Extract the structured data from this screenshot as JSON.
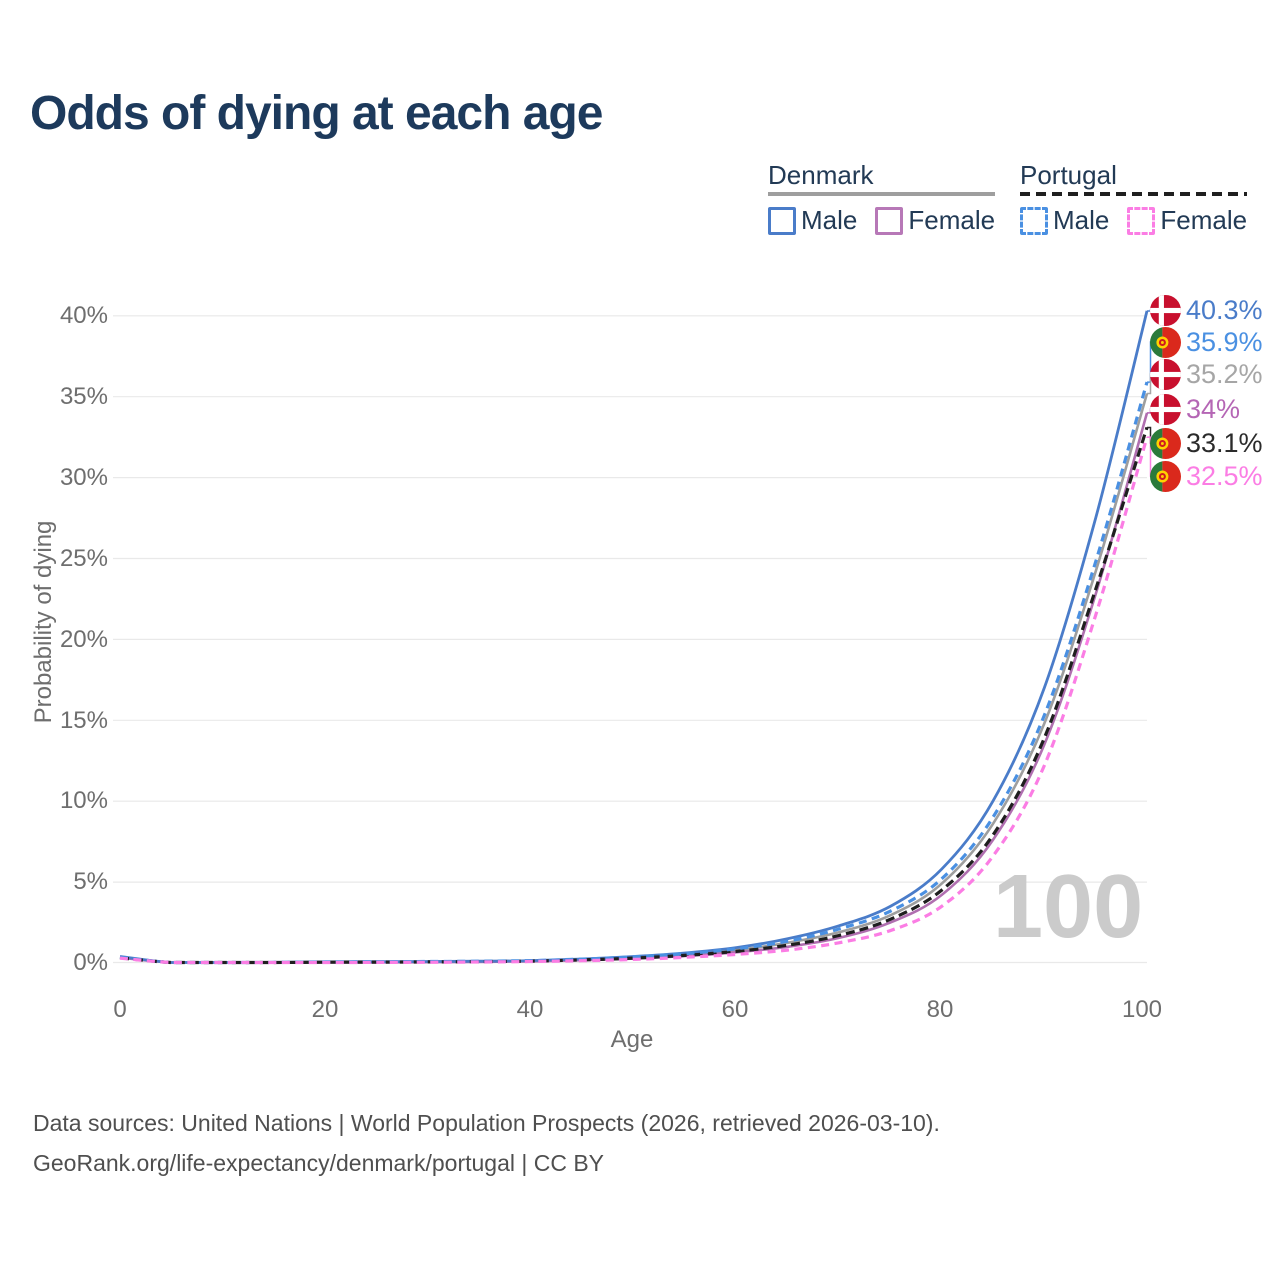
{
  "page": {
    "title": "Odds of dying at each age",
    "watermark": "100",
    "footer_line1": "Data sources: United Nations | World Population Prospects (2026, retrieved 2026-03-10).",
    "footer_line2": "GeoRank.org/life-expectancy/denmark/portugal | CC BY"
  },
  "legend": {
    "groups": [
      {
        "label": "Denmark",
        "line_style": "solid",
        "underline_color": "#9e9e9e",
        "items": [
          {
            "label": "Male",
            "color": "#4a7cc9"
          },
          {
            "label": "Female",
            "color": "#b778b7"
          }
        ]
      },
      {
        "label": "Portugal",
        "line_style": "dashed",
        "underline_color": "#1f1f1f",
        "items": [
          {
            "label": "Male",
            "color": "#4a90e2"
          },
          {
            "label": "Female",
            "color": "#fb7de4"
          }
        ]
      }
    ]
  },
  "chart_data": {
    "type": "line",
    "title": "Odds of dying at each age",
    "xlabel": "Age",
    "ylabel": "Probability of dying",
    "xlim": [
      0,
      100
    ],
    "ylim_percent": [
      0,
      40.3
    ],
    "grid": "horizontal",
    "legend_position": "top-right",
    "x_ticks": [
      "0",
      "20",
      "40",
      "60",
      "80",
      "100"
    ],
    "x_tick_values": [
      0,
      20,
      40,
      60,
      80,
      100
    ],
    "y_ticks": [
      "40%",
      "35%",
      "30%",
      "25%",
      "20%",
      "15%",
      "10%",
      "5%",
      "0%"
    ],
    "y_tick_values": [
      40,
      35,
      30,
      25,
      20,
      15,
      10,
      5,
      0
    ],
    "x": [
      0,
      5,
      10,
      15,
      20,
      25,
      30,
      35,
      40,
      45,
      50,
      55,
      60,
      65,
      70,
      75,
      80,
      85,
      90,
      95,
      100
    ],
    "series": [
      {
        "id": "denmark-both",
        "name": "Denmark (both sexes)",
        "country": "Denmark",
        "sex": "Both",
        "color": "#9e9e9e",
        "style": "solid",
        "width": 2.6,
        "end_label": "35.2%",
        "values": [
          0.37,
          0.02,
          0.02,
          0.03,
          0.05,
          0.06,
          0.07,
          0.09,
          0.13,
          0.21,
          0.33,
          0.52,
          0.8,
          1.25,
          1.9,
          2.95,
          4.9,
          8.6,
          14.8,
          24.2,
          35.2
        ]
      },
      {
        "id": "denmark-female",
        "name": "Denmark Female",
        "country": "Denmark",
        "sex": "Female",
        "color": "#b06fb0",
        "style": "solid",
        "width": 2.6,
        "end_label": "34%",
        "values": [
          0.33,
          0.015,
          0.015,
          0.025,
          0.035,
          0.04,
          0.05,
          0.07,
          0.1,
          0.17,
          0.27,
          0.43,
          0.66,
          1.0,
          1.55,
          2.5,
          4.2,
          7.6,
          13.5,
          22.8,
          34.0
        ]
      },
      {
        "id": "denmark-male",
        "name": "Denmark Male",
        "country": "Denmark",
        "sex": "Male",
        "color": "#4a7cc9",
        "style": "solid",
        "width": 2.8,
        "end_label": "40.3%",
        "values": [
          0.4,
          0.02,
          0.02,
          0.04,
          0.07,
          0.08,
          0.09,
          0.11,
          0.15,
          0.25,
          0.4,
          0.62,
          0.95,
          1.5,
          2.3,
          3.5,
          5.8,
          10.0,
          17.0,
          27.5,
          40.3
        ]
      },
      {
        "id": "portugal-both",
        "name": "Portugal (both sexes)",
        "country": "Portugal",
        "sex": "Both",
        "color": "#1f1f1f",
        "style": "dashed",
        "dasharray": "9 5",
        "width": 3.2,
        "end_label": "33.1%",
        "values": [
          0.32,
          0.015,
          0.015,
          0.03,
          0.05,
          0.055,
          0.065,
          0.085,
          0.12,
          0.19,
          0.3,
          0.47,
          0.72,
          1.1,
          1.7,
          2.7,
          4.5,
          7.9,
          13.9,
          23.1,
          33.1
        ]
      },
      {
        "id": "portugal-male",
        "name": "Portugal Male",
        "country": "Portugal",
        "sex": "Male",
        "color": "#4a90e2",
        "style": "dashed",
        "dasharray": "8 5.5",
        "width": 3.2,
        "end_label": "35.9%",
        "values": [
          0.35,
          0.02,
          0.02,
          0.04,
          0.07,
          0.08,
          0.09,
          0.11,
          0.15,
          0.24,
          0.38,
          0.58,
          0.88,
          1.35,
          2.1,
          3.2,
          5.2,
          9.0,
          15.3,
          24.8,
          35.9
        ]
      },
      {
        "id": "portugal-female",
        "name": "Portugal Female",
        "country": "Portugal",
        "sex": "Female",
        "color": "#fb7de4",
        "style": "dashed",
        "dasharray": "8 5.5",
        "width": 3.2,
        "end_label": "32.5%",
        "values": [
          0.3,
          0.012,
          0.012,
          0.02,
          0.03,
          0.035,
          0.045,
          0.06,
          0.09,
          0.14,
          0.22,
          0.35,
          0.53,
          0.8,
          1.25,
          2.0,
          3.5,
          6.6,
          12.2,
          21.5,
          32.5
        ]
      }
    ],
    "end_labels": [
      {
        "text": "40.3%",
        "value": 40.3,
        "country": "denmark",
        "color": "#4a7cc9"
      },
      {
        "text": "35.9%",
        "value": 35.9,
        "country": "portugal",
        "color": "#4a90e2"
      },
      {
        "text": "35.2%",
        "value": 35.2,
        "country": "denmark",
        "color": "#a6a6a6"
      },
      {
        "text": "34%",
        "value": 34.0,
        "country": "denmark",
        "color": "#b566b5"
      },
      {
        "text": "33.1%",
        "value": 33.1,
        "country": "portugal",
        "color": "#2b2b2b"
      },
      {
        "text": "32.5%",
        "value": 32.5,
        "country": "portugal",
        "color": "#fb7de4"
      }
    ]
  }
}
